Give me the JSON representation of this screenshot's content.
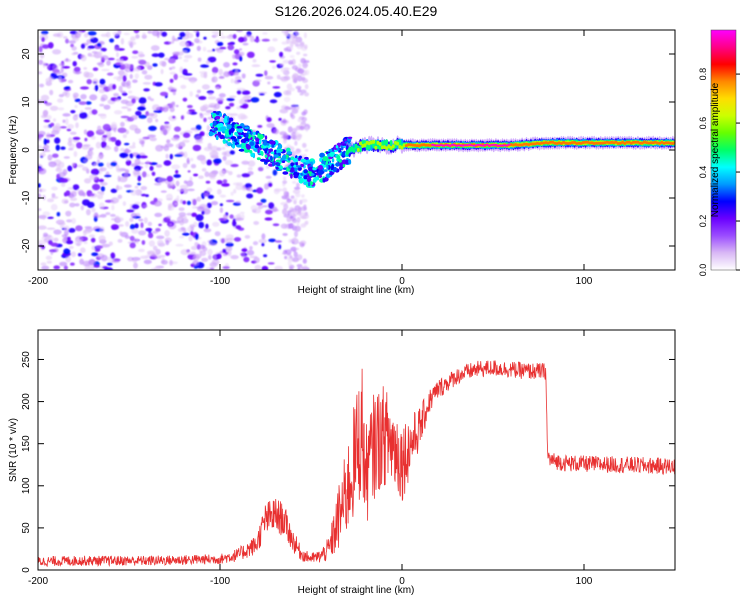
{
  "title": "S126.2026.024.05.40.E29",
  "colorbar": {
    "label": "Normalized spectral amplitude",
    "ticks": [
      0.0,
      0.2,
      0.4,
      0.6,
      0.8
    ],
    "tick_labels": [
      "0.0",
      "0.2",
      "0.4",
      "0.6",
      "0.8"
    ],
    "range": [
      0,
      0.98
    ],
    "colors": [
      "#ffffff",
      "#d9b8f5",
      "#9b4dff",
      "#6a00ff",
      "#0000ff",
      "#0099ff",
      "#00ffff",
      "#00ff66",
      "#66ff00",
      "#ccff00",
      "#ffdd00",
      "#ff8800",
      "#ff0000",
      "#ff0088",
      "#ff00ff"
    ]
  },
  "chart_data": [
    {
      "type": "heatmap",
      "title": "S126.2026.024.05.40.E29",
      "xlabel": "Height of straight line (km)",
      "ylabel": "Frequency (Hz)",
      "xlim": [
        -200,
        150
      ],
      "ylim": [
        -25,
        25
      ],
      "x_ticks": [
        -200,
        -100,
        0,
        100
      ],
      "x_tick_labels": [
        "-200",
        "-100",
        "0",
        "100"
      ],
      "y_ticks": [
        -20,
        -10,
        0,
        10,
        20
      ],
      "y_tick_labels": [
        "-20",
        "-10",
        "0",
        "10",
        "20"
      ],
      "ridge": {
        "x": [
          -105,
          -100,
          -90,
          -80,
          -70,
          -60,
          -50,
          -40,
          -30,
          -20,
          -10,
          0,
          20,
          40,
          60,
          80,
          100,
          120,
          150
        ],
        "frequency": [
          6,
          5,
          3,
          1,
          -1,
          -3,
          -5,
          -3,
          0,
          1,
          1,
          1,
          1,
          1,
          1,
          1.5,
          1.5,
          1.5,
          1.5
        ],
        "amplitude": [
          0.35,
          0.3,
          0.35,
          0.3,
          0.35,
          0.3,
          0.3,
          0.4,
          0.5,
          0.6,
          0.65,
          0.7,
          0.95,
          0.95,
          0.9,
          0.8,
          0.75,
          0.75,
          0.75
        ]
      },
      "noise_region_x": [
        -200,
        -95
      ],
      "noise_column_x": [
        -65,
        -52
      ]
    },
    {
      "type": "line",
      "xlabel": "Height of straight line (km)",
      "ylabel": "SNR (10 * v/v)",
      "xlim": [
        -200,
        150
      ],
      "ylim": [
        0,
        285
      ],
      "x_ticks": [
        -200,
        -100,
        0,
        100
      ],
      "x_tick_labels": [
        "-200",
        "-100",
        "0",
        "100"
      ],
      "y_ticks": [
        0,
        50,
        100,
        150,
        200,
        250
      ],
      "y_tick_labels": [
        "0",
        "50",
        "100",
        "150",
        "200",
        "250"
      ],
      "color": "#e83030",
      "series": [
        {
          "name": "SNR",
          "x": [
            -200,
            -180,
            -160,
            -140,
            -120,
            -100,
            -90,
            -80,
            -75,
            -70,
            -65,
            -60,
            -55,
            -50,
            -45,
            -40,
            -35,
            -30,
            -25,
            -22,
            -20,
            -15,
            -10,
            -5,
            0,
            5,
            10,
            15,
            20,
            30,
            40,
            50,
            60,
            70,
            79,
            80,
            82,
            90,
            100,
            120,
            150
          ],
          "mean": [
            10,
            11,
            11,
            11,
            12,
            13,
            18,
            30,
            60,
            65,
            60,
            35,
            18,
            14,
            16,
            25,
            60,
            95,
            140,
            170,
            110,
            150,
            160,
            150,
            130,
            150,
            170,
            200,
            215,
            230,
            238,
            240,
            238,
            236,
            236,
            135,
            130,
            127,
            126,
            125,
            123
          ],
          "spread": [
            6,
            6,
            6,
            6,
            6,
            6,
            8,
            12,
            20,
            22,
            20,
            14,
            8,
            6,
            8,
            15,
            40,
            55,
            75,
            80,
            60,
            65,
            60,
            55,
            50,
            35,
            25,
            15,
            12,
            10,
            10,
            10,
            10,
            10,
            10,
            12,
            10,
            10,
            10,
            10,
            10
          ]
        }
      ]
    }
  ]
}
